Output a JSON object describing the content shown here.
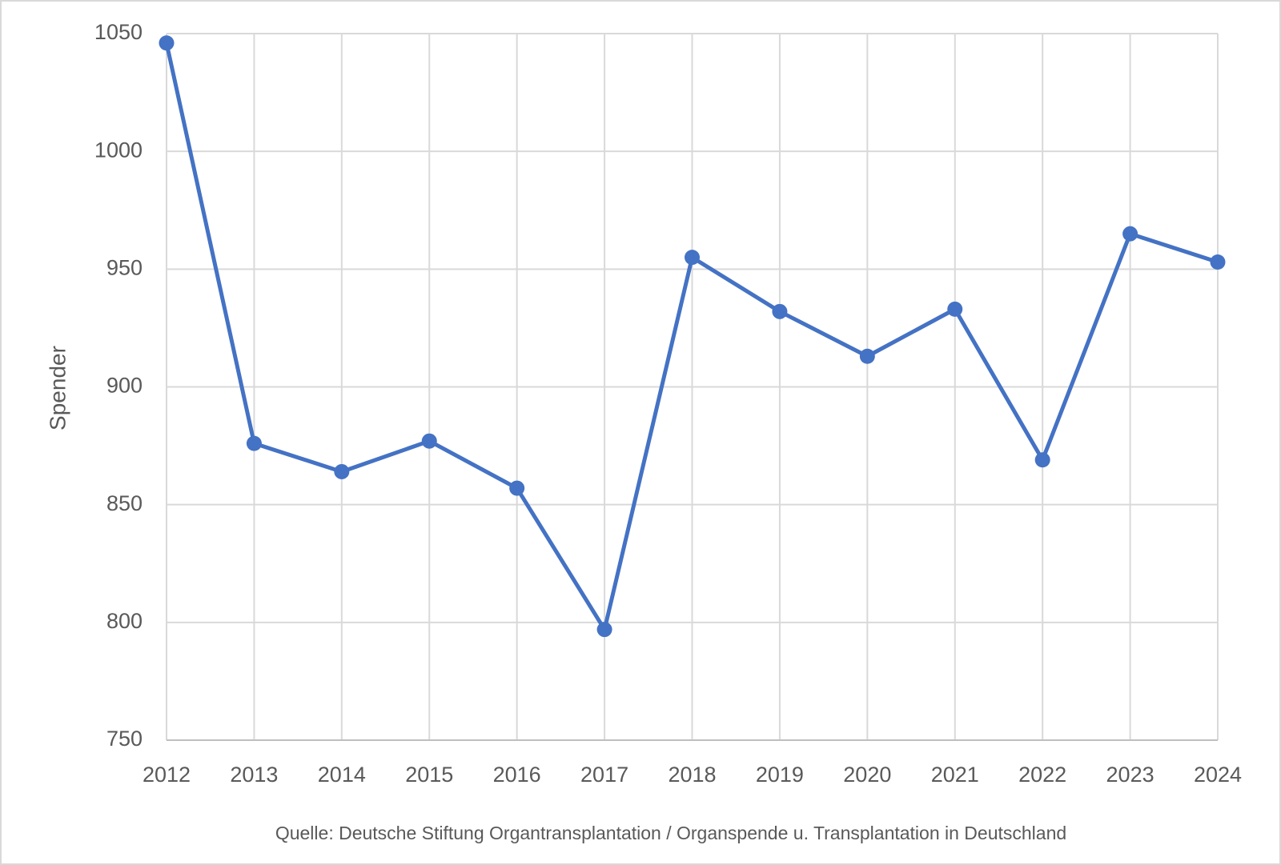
{
  "chart_data": {
    "type": "line",
    "y_label": "Spender",
    "source": "Quelle: Deutsche Stiftung Organtransplantation  / Organspende  u. Transplantation  in Deutschland",
    "x": [
      2012,
      2013,
      2014,
      2015,
      2016,
      2017,
      2018,
      2019,
      2020,
      2021,
      2022,
      2023,
      2024
    ],
    "values": [
      1046,
      876,
      864,
      877,
      857,
      797,
      955,
      932,
      913,
      933,
      869,
      965,
      953
    ],
    "color": "#4472c4",
    "xlim": [
      2012,
      2024
    ],
    "xticks": [
      2012,
      2013,
      2014,
      2015,
      2016,
      2017,
      2018,
      2019,
      2020,
      2021,
      2022,
      2023,
      2024
    ],
    "ylim": [
      750,
      1050
    ],
    "yticks": [
      750,
      800,
      850,
      900,
      950,
      1000,
      1050
    ],
    "grid": true
  }
}
